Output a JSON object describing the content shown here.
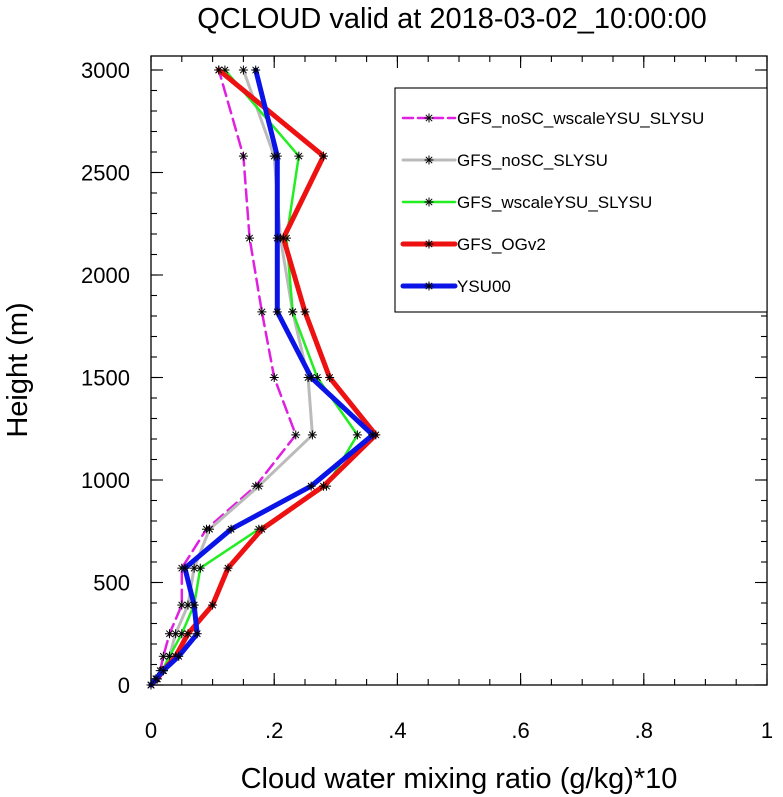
{
  "chart_data": {
    "type": "line",
    "title": "QCLOUD valid at 2018-03-02_10:00:00",
    "xlabel": "Cloud water mixing ratio (g/kg)*10",
    "ylabel": "Height (m)",
    "xlim": [
      0,
      1
    ],
    "ylim": [
      0,
      3000
    ],
    "xticks": [
      0,
      0.2,
      0.4,
      0.6,
      0.8,
      1
    ],
    "xtick_labels": [
      "0",
      ".2",
      ".4",
      ".6",
      ".8",
      "1"
    ],
    "yticks": [
      0,
      500,
      1000,
      1500,
      2000,
      2500,
      3000
    ],
    "ytick_labels": [
      "0",
      "500",
      "1000",
      "1500",
      "2000",
      "2500",
      "3000"
    ],
    "grid": false,
    "legend_position": "top-right",
    "series": [
      {
        "name": "GFS_noSC_wscaleYSU_SLYSU",
        "color": "#e020e0",
        "dash": true,
        "width": 2.5,
        "points": [
          [
            0.0,
            0
          ],
          [
            0.01,
            30
          ],
          [
            0.015,
            70
          ],
          [
            0.02,
            140
          ],
          [
            0.03,
            250
          ],
          [
            0.05,
            390
          ],
          [
            0.05,
            570
          ],
          [
            0.09,
            760
          ],
          [
            0.17,
            970
          ],
          [
            0.235,
            1220
          ],
          [
            0.2,
            1500
          ],
          [
            0.18,
            1820
          ],
          [
            0.16,
            2180
          ],
          [
            0.15,
            2580
          ],
          [
            0.11,
            3000
          ]
        ]
      },
      {
        "name": "GFS_noSC_SLYSU",
        "color": "#bbbbbb",
        "dash": false,
        "width": 3,
        "points": [
          [
            0.0,
            0
          ],
          [
            0.01,
            30
          ],
          [
            0.02,
            70
          ],
          [
            0.03,
            140
          ],
          [
            0.04,
            250
          ],
          [
            0.06,
            390
          ],
          [
            0.07,
            570
          ],
          [
            0.095,
            760
          ],
          [
            0.175,
            970
          ],
          [
            0.262,
            1220
          ],
          [
            0.255,
            1500
          ],
          [
            0.23,
            1820
          ],
          [
            0.21,
            2180
          ],
          [
            0.2,
            2580
          ],
          [
            0.15,
            3000
          ]
        ]
      },
      {
        "name": "GFS_wscaleYSU_SLYSU",
        "color": "#22ee22",
        "dash": false,
        "width": 2.5,
        "points": [
          [
            0.0,
            0
          ],
          [
            0.008,
            30
          ],
          [
            0.018,
            70
          ],
          [
            0.03,
            140
          ],
          [
            0.05,
            250
          ],
          [
            0.07,
            390
          ],
          [
            0.08,
            570
          ],
          [
            0.175,
            760
          ],
          [
            0.285,
            970
          ],
          [
            0.335,
            1220
          ],
          [
            0.27,
            1500
          ],
          [
            0.23,
            1820
          ],
          [
            0.22,
            2180
          ],
          [
            0.24,
            2580
          ],
          [
            0.12,
            3000
          ]
        ]
      },
      {
        "name": "GFS_OGv2",
        "color": "#ee1111",
        "dash": false,
        "width": 5,
        "points": [
          [
            0.0,
            0
          ],
          [
            0.01,
            30
          ],
          [
            0.02,
            70
          ],
          [
            0.04,
            140
          ],
          [
            0.06,
            250
          ],
          [
            0.1,
            390
          ],
          [
            0.125,
            570
          ],
          [
            0.18,
            760
          ],
          [
            0.28,
            970
          ],
          [
            0.365,
            1220
          ],
          [
            0.29,
            1500
          ],
          [
            0.25,
            1820
          ],
          [
            0.215,
            2180
          ],
          [
            0.28,
            2580
          ],
          [
            0.11,
            3000
          ]
        ]
      },
      {
        "name": "YSU00",
        "color": "#0a14e6",
        "dash": false,
        "width": 5,
        "points": [
          [
            0.0,
            0
          ],
          [
            0.008,
            30
          ],
          [
            0.02,
            70
          ],
          [
            0.045,
            140
          ],
          [
            0.075,
            250
          ],
          [
            0.07,
            390
          ],
          [
            0.055,
            570
          ],
          [
            0.13,
            760
          ],
          [
            0.26,
            970
          ],
          [
            0.36,
            1220
          ],
          [
            0.26,
            1500
          ],
          [
            0.205,
            1820
          ],
          [
            0.205,
            2180
          ],
          [
            0.205,
            2580
          ],
          [
            0.17,
            3000
          ]
        ]
      }
    ]
  }
}
